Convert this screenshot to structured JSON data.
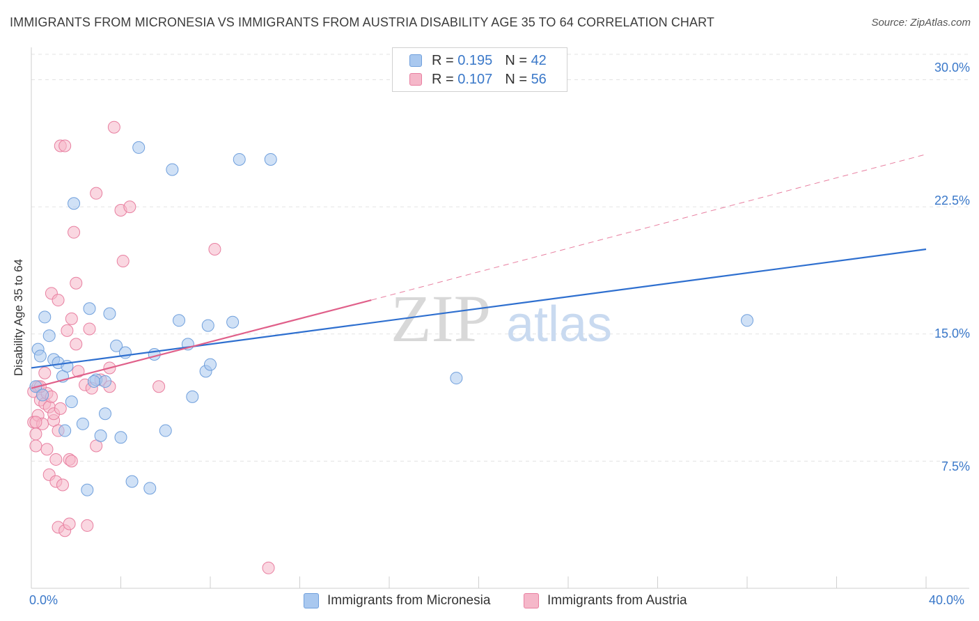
{
  "header": {
    "title": "IMMIGRANTS FROM MICRONESIA VS IMMIGRANTS FROM AUSTRIA DISABILITY AGE 35 TO 64 CORRELATION CHART",
    "source": "Source: ZipAtlas.com"
  },
  "legend": {
    "micronesia": {
      "r_label": "R =",
      "r_value": "0.195",
      "n_label": "N =",
      "n_value": "42"
    },
    "austria": {
      "r_label": "R =",
      "r_value": "0.107",
      "n_label": "N =",
      "n_value": "56"
    }
  },
  "colors": {
    "blue_fill": "#a9c8ef",
    "blue_stroke": "#6f9fdc",
    "blue_line": "#2e6fcf",
    "pink_fill": "#f5b7c9",
    "pink_stroke": "#e87fa0",
    "pink_line": "#e0608a",
    "grid": "#e3e3e3",
    "axis_text": "#3a78c9"
  },
  "watermark": {
    "zip": "ZIP",
    "atlas": "atlas"
  },
  "chart_data": {
    "type": "scatter",
    "title": "IMMIGRANTS FROM MICRONESIA VS IMMIGRANTS FROM AUSTRIA DISABILITY AGE 35 TO 64 CORRELATION CHART",
    "xlabel": "",
    "ylabel": "Disability Age 35 to 64",
    "xlim": [
      0,
      40
    ],
    "ylim": [
      0,
      31.5
    ],
    "x_tick_labels": [
      "0.0%",
      "40.0%"
    ],
    "y_ticks": [
      7.5,
      15.0,
      22.5,
      30.0
    ],
    "y_tick_labels": [
      "7.5%",
      "15.0%",
      "22.5%",
      "30.0%"
    ],
    "grid": true,
    "legend_position": "top-center",
    "series": [
      {
        "name": "Immigrants from Micronesia",
        "r": 0.195,
        "n": 42,
        "trend": {
          "x": [
            0,
            40
          ],
          "y": [
            13.0,
            20.0
          ],
          "style": "solid"
        },
        "points": [
          [
            0.2,
            11.9
          ],
          [
            0.3,
            14.1
          ],
          [
            0.4,
            13.7
          ],
          [
            0.5,
            11.4
          ],
          [
            0.6,
            16.0
          ],
          [
            0.8,
            14.9
          ],
          [
            1.0,
            13.5
          ],
          [
            1.2,
            13.3
          ],
          [
            1.4,
            12.5
          ],
          [
            1.6,
            13.1
          ],
          [
            1.8,
            11.0
          ],
          [
            1.9,
            22.7
          ],
          [
            2.3,
            9.7
          ],
          [
            2.6,
            16.5
          ],
          [
            2.9,
            12.3
          ],
          [
            3.1,
            9.0
          ],
          [
            3.3,
            10.3
          ],
          [
            3.5,
            16.2
          ],
          [
            3.8,
            14.3
          ],
          [
            4.0,
            8.9
          ],
          [
            4.2,
            13.9
          ],
          [
            4.5,
            6.3
          ],
          [
            4.8,
            26.0
          ],
          [
            5.3,
            5.9
          ],
          [
            5.5,
            13.8
          ],
          [
            6.0,
            9.3
          ],
          [
            6.3,
            24.7
          ],
          [
            6.6,
            15.8
          ],
          [
            7.0,
            14.4
          ],
          [
            7.2,
            11.3
          ],
          [
            7.8,
            12.8
          ],
          [
            7.9,
            15.5
          ],
          [
            8.0,
            13.2
          ],
          [
            9.0,
            15.7
          ],
          [
            9.3,
            25.3
          ],
          [
            10.7,
            25.3
          ],
          [
            1.5,
            9.3
          ],
          [
            2.5,
            5.8
          ],
          [
            3.3,
            12.2
          ],
          [
            19.0,
            12.4
          ],
          [
            32.0,
            15.8
          ],
          [
            2.8,
            12.2
          ]
        ]
      },
      {
        "name": "Immigrants from Austria",
        "r": 0.107,
        "n": 56,
        "trend": {
          "x": [
            0,
            15.2
          ],
          "y": [
            11.8,
            17.0
          ],
          "style": "solid"
        },
        "trend_extension": {
          "x": [
            15.2,
            40
          ],
          "y": [
            17.0,
            25.6
          ],
          "style": "dashed"
        },
        "points": [
          [
            0.1,
            11.6
          ],
          [
            0.1,
            9.8
          ],
          [
            0.2,
            9.1
          ],
          [
            0.2,
            8.4
          ],
          [
            0.3,
            10.2
          ],
          [
            0.3,
            11.9
          ],
          [
            0.4,
            11.1
          ],
          [
            0.5,
            11.4
          ],
          [
            0.5,
            9.7
          ],
          [
            0.6,
            12.7
          ],
          [
            0.6,
            10.9
          ],
          [
            0.7,
            8.2
          ],
          [
            0.7,
            11.5
          ],
          [
            0.8,
            10.7
          ],
          [
            0.8,
            6.7
          ],
          [
            0.9,
            17.4
          ],
          [
            1.0,
            9.9
          ],
          [
            1.0,
            10.3
          ],
          [
            1.1,
            7.6
          ],
          [
            1.1,
            6.3
          ],
          [
            1.2,
            9.3
          ],
          [
            1.2,
            17.0
          ],
          [
            1.3,
            26.1
          ],
          [
            1.5,
            26.1
          ],
          [
            1.2,
            3.6
          ],
          [
            1.4,
            6.1
          ],
          [
            1.5,
            3.4
          ],
          [
            1.6,
            15.2
          ],
          [
            1.7,
            7.6
          ],
          [
            1.7,
            3.8
          ],
          [
            1.8,
            15.9
          ],
          [
            1.8,
            7.5
          ],
          [
            1.9,
            21.0
          ],
          [
            2.0,
            18.0
          ],
          [
            2.0,
            14.4
          ],
          [
            2.1,
            12.8
          ],
          [
            2.4,
            12.0
          ],
          [
            2.5,
            3.7
          ],
          [
            2.6,
            15.3
          ],
          [
            2.7,
            11.8
          ],
          [
            2.9,
            8.4
          ],
          [
            2.9,
            23.3
          ],
          [
            3.1,
            12.3
          ],
          [
            3.5,
            11.9
          ],
          [
            3.5,
            13.0
          ],
          [
            3.7,
            27.2
          ],
          [
            4.0,
            22.3
          ],
          [
            4.4,
            22.5
          ],
          [
            4.1,
            19.3
          ],
          [
            5.7,
            11.9
          ],
          [
            8.2,
            20.0
          ],
          [
            10.6,
            1.2
          ],
          [
            0.2,
            9.8
          ],
          [
            0.4,
            11.9
          ],
          [
            0.9,
            11.3
          ],
          [
            1.3,
            10.6
          ]
        ]
      }
    ]
  },
  "bottom_legend": {
    "micronesia_label": "Immigrants from Micronesia",
    "austria_label": "Immigrants from Austria"
  }
}
